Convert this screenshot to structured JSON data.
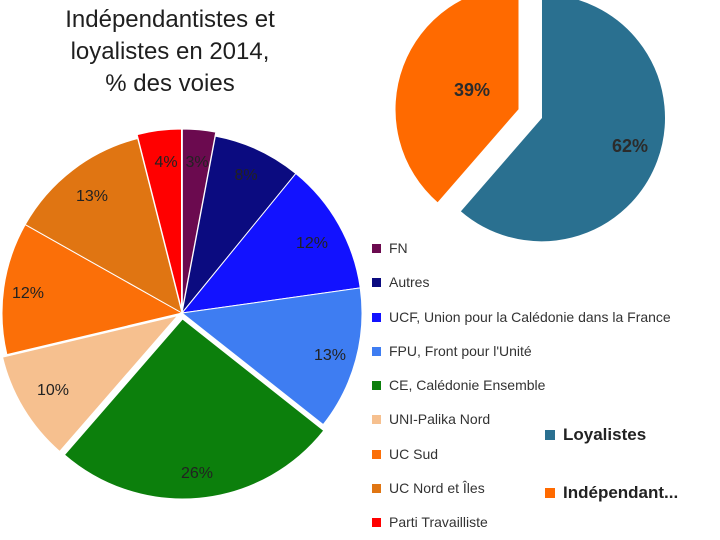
{
  "chart_data": [
    {
      "type": "pie",
      "title": "Indépendantistes et loyalistes en 2014, % des voies",
      "title_lines": [
        "Indépendantistes et",
        "loyalistes en 2014,",
        "% des voies"
      ],
      "slices": [
        {
          "name": "FN",
          "value": 3,
          "label": "3%",
          "color": "#6b0a4f"
        },
        {
          "name": "Autres",
          "value": 8,
          "label": "8%",
          "color": "#0b0b80"
        },
        {
          "name": "UCF, Union pour la Calédonie dans la France",
          "value": 12,
          "label": "12%",
          "color": "#1212ff"
        },
        {
          "name": "FPU, Front pour l'Unité",
          "value": 13,
          "label": "13%",
          "color": "#3e7df2"
        },
        {
          "name": "CE, Calédonie Ensemble",
          "value": 26,
          "label": "26%",
          "color": "#0c7f0c"
        },
        {
          "name": "UNI-Palika Nord",
          "value": 10,
          "label": "10%",
          "color": "#f6c08f"
        },
        {
          "name": "UC Sud",
          "value": 12,
          "label": "12%",
          "color": "#fb6f08"
        },
        {
          "name": "UC Nord et Îles",
          "value": 13,
          "label": "13%",
          "color": "#e07512"
        },
        {
          "name": "Parti Travailliste",
          "value": 4,
          "label": "4%",
          "color": "#ff0000"
        }
      ]
    },
    {
      "type": "pie",
      "title": "",
      "slices": [
        {
          "name": "Loyalistes",
          "value": 62,
          "label": "62%",
          "color": "#2a7090"
        },
        {
          "name": "Indépendant...",
          "value": 39,
          "label": "39%",
          "color": "#ff6a00"
        }
      ]
    }
  ]
}
